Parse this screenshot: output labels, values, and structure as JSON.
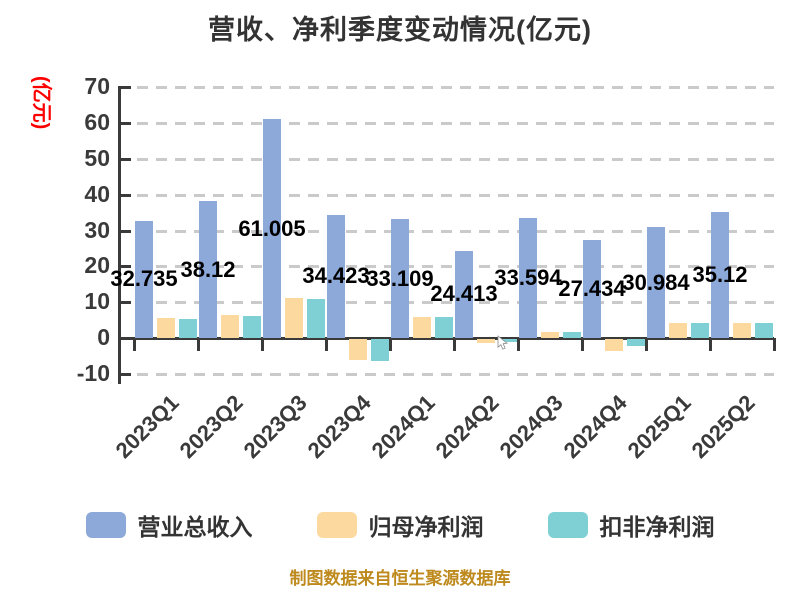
{
  "title": "营收、净利季度变动情况(亿元)",
  "y_axis_unit": "(亿元)",
  "footer": "制图数据来自恒生聚源数据库",
  "colors": {
    "revenue": "#8CA9D9",
    "net_profit": "#FCD99F",
    "deducted_profit": "#7FD0D4",
    "grid": "#cacaca",
    "axis": "#3a3a3a",
    "bar_label": "#000000",
    "unit_label": "#ff0000",
    "footer": "#BE8A1E",
    "title": "#333333"
  },
  "chart_data": {
    "type": "bar",
    "categories": [
      "2023Q1",
      "2023Q2",
      "2023Q3",
      "2023Q4",
      "2024Q1",
      "2024Q2",
      "2024Q3",
      "2024Q4",
      "2025Q1",
      "2025Q2"
    ],
    "series": [
      {
        "name": "营业总收入",
        "color_key": "revenue",
        "labeled": true,
        "values": [
          32.735,
          38.12,
          61.005,
          34.423,
          33.109,
          24.413,
          33.594,
          27.434,
          30.984,
          35.12
        ]
      },
      {
        "name": "归母净利润",
        "color_key": "net_profit",
        "labeled": false,
        "values": [
          5.6,
          6.5,
          11.2,
          -5.8,
          5.9,
          -1.1,
          1.7,
          -3.2,
          4.3,
          4.3
        ]
      },
      {
        "name": "扣非净利润",
        "color_key": "deducted_profit",
        "labeled": false,
        "values": [
          5.3,
          6.2,
          10.9,
          -6.1,
          5.8,
          -0.7,
          1.8,
          -1.9,
          4.1,
          4.2
        ]
      }
    ],
    "title": "营收、净利季度变动情况(亿元)",
    "xlabel": "",
    "ylabel": "(亿元)",
    "ylim": [
      -10,
      70
    ],
    "yticks": [
      70,
      60,
      50,
      40,
      30,
      20,
      10,
      0,
      -10
    ],
    "grid": "dashed-horizontal",
    "legend_position": "bottom"
  }
}
